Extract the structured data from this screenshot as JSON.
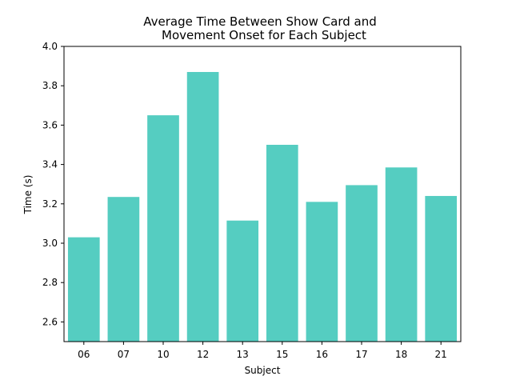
{
  "chart_data": {
    "type": "bar",
    "title_lines": [
      "Average Time Between Show Card and",
      "Movement Onset for Each Subject"
    ],
    "xlabel": "Subject",
    "ylabel": "Time (s)",
    "categories": [
      "06",
      "07",
      "10",
      "12",
      "13",
      "15",
      "16",
      "17",
      "18",
      "21"
    ],
    "values": [
      3.03,
      3.235,
      3.65,
      3.87,
      3.115,
      3.5,
      3.21,
      3.295,
      3.385,
      3.24
    ],
    "ylim": [
      2.5,
      4.0
    ],
    "yticks": [
      "2.6",
      "2.8",
      "3.0",
      "3.2",
      "3.4",
      "3.6",
      "3.8",
      "4.0"
    ],
    "grid": false,
    "bar_color": "#55cdc1"
  }
}
